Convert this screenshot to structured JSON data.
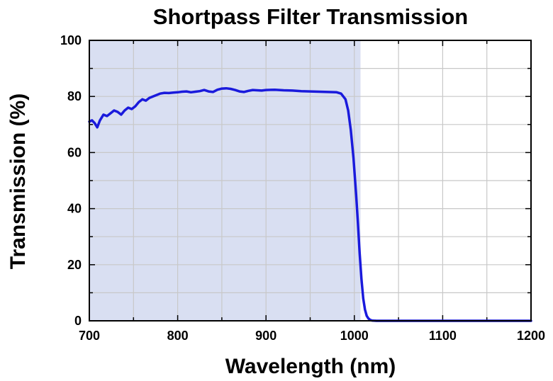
{
  "chart_data": {
    "type": "line",
    "title": "Shortpass Filter Transmission",
    "xlabel": "Wavelength (nm)",
    "ylabel": "Transmission (%)",
    "xlim": [
      700,
      1200
    ],
    "ylim": [
      0,
      100
    ],
    "x_ticks": [
      700,
      800,
      900,
      1000,
      1100,
      1200
    ],
    "y_ticks": [
      0,
      20,
      40,
      60,
      80,
      100
    ],
    "grid": true,
    "shaded_band": {
      "x_start": 700,
      "x_end": 1007,
      "color": "#d9dff2"
    },
    "series": [
      {
        "color": "#1a1adc",
        "x": [
          700,
          703,
          706,
          709,
          712,
          716,
          720,
          724,
          728,
          732,
          736,
          740,
          744,
          748,
          752,
          756,
          760,
          764,
          768,
          772,
          776,
          780,
          785,
          790,
          795,
          800,
          805,
          810,
          815,
          820,
          825,
          830,
          835,
          840,
          845,
          850,
          855,
          860,
          865,
          870,
          875,
          880,
          885,
          890,
          895,
          900,
          910,
          920,
          930,
          940,
          950,
          960,
          970,
          980,
          985,
          990,
          993,
          996,
          999,
          1002,
          1004,
          1006,
          1008,
          1010,
          1012,
          1014,
          1016,
          1018,
          1020,
          1022,
          1025,
          1030,
          1050,
          1080,
          1100,
          1150,
          1200
        ],
        "y": [
          71.0,
          71.5,
          70.5,
          69.0,
          71.5,
          73.5,
          73.0,
          74.0,
          75.0,
          74.5,
          73.5,
          75.0,
          76.0,
          75.5,
          76.5,
          78.0,
          79.0,
          78.5,
          79.5,
          80.0,
          80.5,
          81.0,
          81.3,
          81.2,
          81.4,
          81.5,
          81.7,
          81.8,
          81.5,
          81.7,
          81.9,
          82.3,
          81.8,
          81.6,
          82.4,
          82.8,
          82.9,
          82.7,
          82.3,
          81.8,
          81.6,
          82.0,
          82.3,
          82.2,
          82.1,
          82.3,
          82.4,
          82.2,
          82.1,
          81.9,
          81.8,
          81.7,
          81.6,
          81.5,
          81.0,
          79.0,
          75.0,
          68.0,
          58.0,
          45.0,
          35.0,
          24.0,
          15.0,
          8.0,
          4.0,
          1.8,
          0.8,
          0.3,
          0.1,
          0.05,
          0.0,
          0.0,
          0.0,
          0.0,
          0.0,
          0.0,
          0.0
        ]
      }
    ]
  }
}
